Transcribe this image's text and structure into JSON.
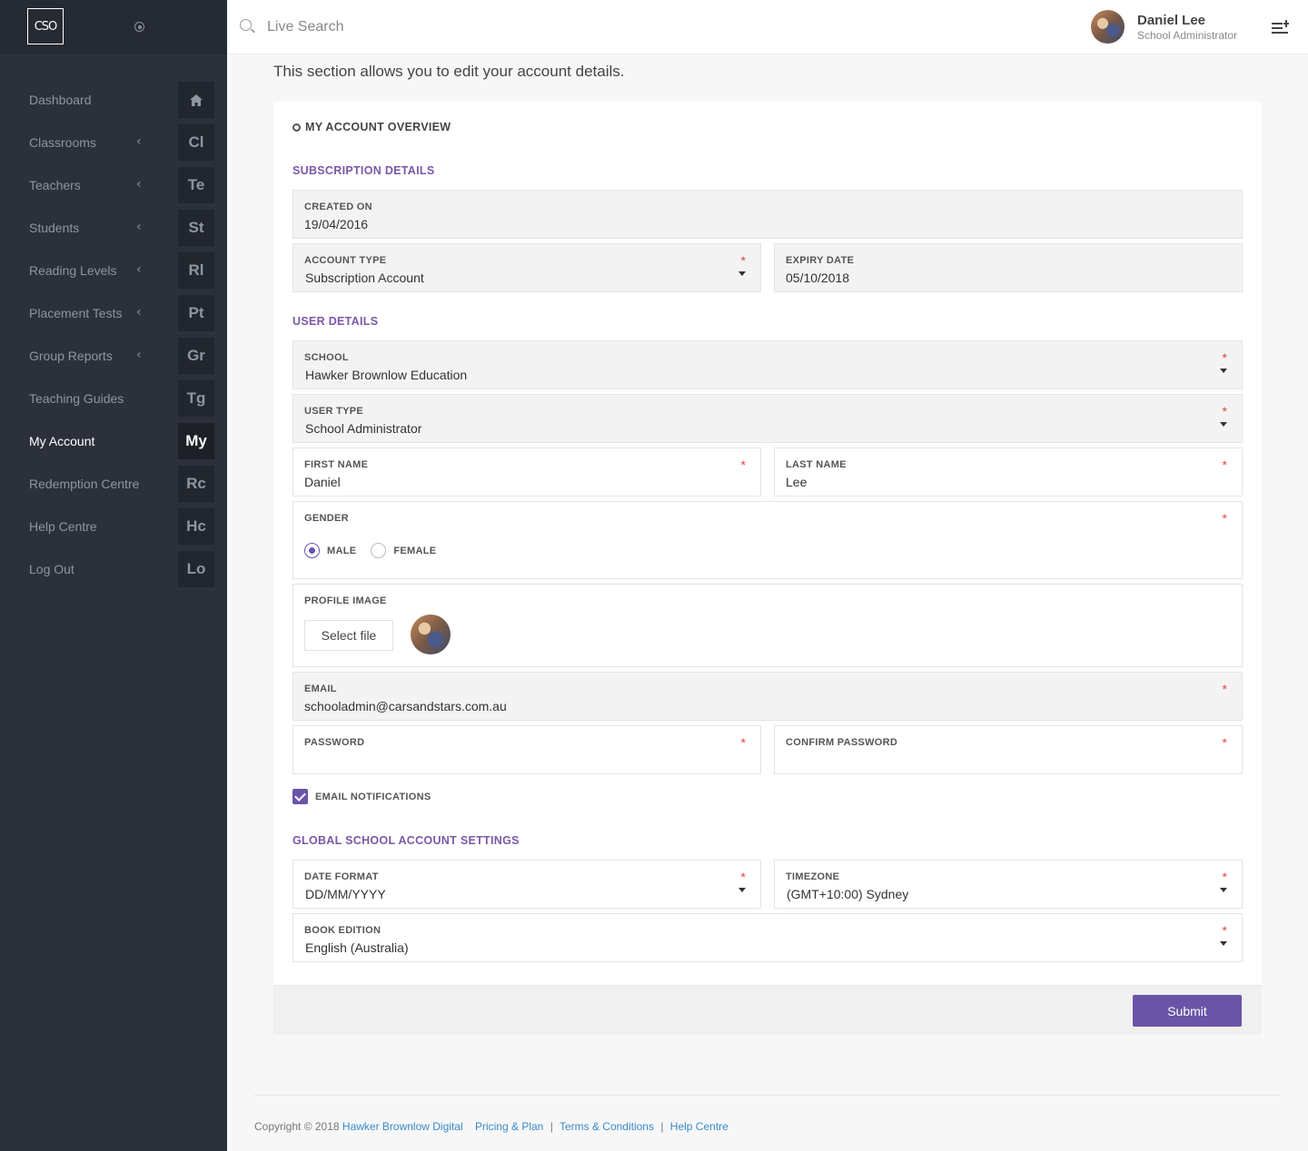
{
  "app": {
    "logo_text": "CSO"
  },
  "sidebar": {
    "items": [
      {
        "label": "Dashboard",
        "badge": "",
        "has_chevron": false,
        "active": false
      },
      {
        "label": "Classrooms",
        "badge": "Cl",
        "has_chevron": true,
        "active": false
      },
      {
        "label": "Teachers",
        "badge": "Te",
        "has_chevron": true,
        "active": false
      },
      {
        "label": "Students",
        "badge": "St",
        "has_chevron": true,
        "active": false
      },
      {
        "label": "Reading Levels",
        "badge": "Rl",
        "has_chevron": true,
        "active": false
      },
      {
        "label": "Placement Tests",
        "badge": "Pt",
        "has_chevron": true,
        "active": false
      },
      {
        "label": "Group Reports",
        "badge": "Gr",
        "has_chevron": true,
        "active": false
      },
      {
        "label": "Teaching Guides",
        "badge": "Tg",
        "has_chevron": false,
        "active": false
      },
      {
        "label": "My Account",
        "badge": "My",
        "has_chevron": false,
        "active": true
      },
      {
        "label": "Redemption Centre",
        "badge": "Rc",
        "has_chevron": false,
        "active": false
      },
      {
        "label": "Help Centre",
        "badge": "Hc",
        "has_chevron": false,
        "active": false
      },
      {
        "label": "Log Out",
        "badge": "Lo",
        "has_chevron": false,
        "active": false
      }
    ],
    "chevron": "‹"
  },
  "header": {
    "search_placeholder": "Live Search",
    "user_name": "Daniel Lee",
    "user_role": "School Administrator"
  },
  "main": {
    "intro": "This section allows you to edit your account details.",
    "panel_title": "MY ACCOUNT OVERVIEW",
    "sections": {
      "subscription": "SUBSCRIPTION DETAILS",
      "user": "USER DETAILS",
      "global": "GLOBAL SCHOOL ACCOUNT SETTINGS"
    },
    "required_mark": "*",
    "fields": {
      "created_on": {
        "label": "CREATED ON",
        "value": "19/04/2016"
      },
      "account_type": {
        "label": "ACCOUNT TYPE",
        "value": "Subscription Account"
      },
      "expiry_date": {
        "label": "EXPIRY DATE",
        "value": "05/10/2018"
      },
      "school": {
        "label": "SCHOOL",
        "value": "Hawker Brownlow Education"
      },
      "user_type": {
        "label": "USER TYPE",
        "value": "School Administrator"
      },
      "first_name": {
        "label": "FIRST NAME",
        "value": "Daniel"
      },
      "last_name": {
        "label": "LAST NAME",
        "value": "Lee"
      },
      "gender": {
        "label": "GENDER",
        "options": [
          "MALE",
          "FEMALE"
        ],
        "selected": "MALE"
      },
      "profile_image": {
        "label": "PROFILE IMAGE",
        "button": "Select file"
      },
      "email": {
        "label": "EMAIL",
        "value": "schooladmin@carsandstars.com.au"
      },
      "password": {
        "label": "PASSWORD",
        "value": ""
      },
      "confirm_password": {
        "label": "CONFIRM PASSWORD",
        "value": ""
      },
      "email_notifications": {
        "label": "EMAIL NOTIFICATIONS",
        "checked": true
      },
      "date_format": {
        "label": "DATE FORMAT",
        "value": "DD/MM/YYYY"
      },
      "timezone": {
        "label": "TIMEZONE",
        "value": "(GMT+10:00) Sydney"
      },
      "book_edition": {
        "label": "BOOK EDITION",
        "value": "English (Australia)"
      }
    },
    "submit_label": "Submit"
  },
  "footer": {
    "copyright": "Copyright © 2018",
    "company_link": "Hawker Brownlow Digital",
    "links": [
      "Pricing & Plan",
      "Terms & Conditions",
      "Help Centre"
    ],
    "separator": "|"
  },
  "colors": {
    "accent": "#6a54a8",
    "sidebar_bg": "#2b303b",
    "link": "#3a8ac8",
    "required": "#e0463c"
  }
}
